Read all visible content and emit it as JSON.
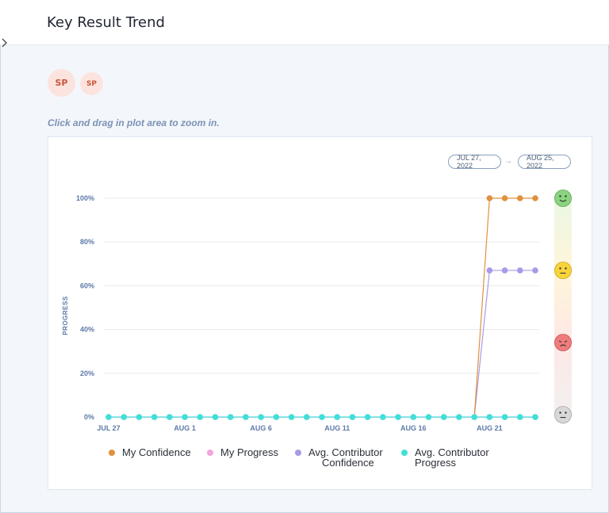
{
  "header": {
    "title": "Key Result Trend"
  },
  "avatars": [
    {
      "initials": "SP"
    },
    {
      "initials": "SP"
    }
  ],
  "hint": "Click and drag in plot area to zoom in.",
  "date_range": {
    "start": "JUL 27, 2022",
    "arrow": "→",
    "end": "AUG 25, 2022"
  },
  "colors": {
    "my_confidence": "#e0913f",
    "my_progress": "#f4a3dd",
    "avg_contributor_confidence": "#a79be8",
    "avg_contributor_progress": "#3fe0d9"
  },
  "chart_data": {
    "type": "line",
    "ylabel": "PROGRESS",
    "ylim": [
      0,
      100
    ],
    "y_ticks": [
      "0%",
      "20%",
      "40%",
      "60%",
      "80%",
      "100%"
    ],
    "x_tick_labels": [
      "JUL 27",
      "AUG 1",
      "AUG 6",
      "AUG 11",
      "AUG 16",
      "AUG 21"
    ],
    "x_tick_days": [
      27,
      32,
      37,
      42,
      47,
      52
    ],
    "x_days": [
      27,
      28,
      29,
      30,
      31,
      32,
      33,
      34,
      35,
      36,
      37,
      38,
      39,
      40,
      41,
      42,
      43,
      44,
      45,
      46,
      47,
      48,
      49,
      50,
      51,
      52,
      53,
      54,
      55
    ],
    "grid": true,
    "legend_position": "bottom",
    "series": [
      {
        "name": "My Confidence",
        "color_key": "my_confidence",
        "values": [
          null,
          null,
          null,
          null,
          null,
          null,
          null,
          null,
          null,
          null,
          null,
          null,
          null,
          null,
          null,
          null,
          null,
          null,
          null,
          null,
          null,
          null,
          null,
          null,
          0,
          100,
          100,
          100,
          100
        ]
      },
      {
        "name": "My Progress",
        "color_key": "my_progress",
        "values": [
          0,
          0,
          0,
          0,
          0,
          0,
          0,
          0,
          0,
          0,
          0,
          0,
          0,
          0,
          0,
          0,
          0,
          0,
          0,
          0,
          0,
          0,
          0,
          0,
          0,
          0,
          0,
          0,
          0
        ]
      },
      {
        "name": "Avg. Contributor Confidence",
        "color_key": "avg_contributor_confidence",
        "values": [
          null,
          null,
          null,
          null,
          null,
          null,
          null,
          null,
          null,
          null,
          null,
          null,
          null,
          null,
          null,
          null,
          null,
          null,
          null,
          null,
          null,
          null,
          null,
          null,
          0,
          67,
          67,
          67,
          67
        ]
      },
      {
        "name": "Avg. Contributor Progress",
        "color_key": "avg_contributor_progress",
        "values": [
          0,
          0,
          0,
          0,
          0,
          0,
          0,
          0,
          0,
          0,
          0,
          0,
          0,
          0,
          0,
          0,
          0,
          0,
          0,
          0,
          0,
          0,
          0,
          0,
          0,
          0,
          0,
          0,
          0
        ]
      }
    ],
    "confidence_scale": [
      "happy-face-icon",
      "neutral-face-icon",
      "sad-face-icon",
      "no-status-face-icon"
    ]
  },
  "legend": {
    "my_confidence": "My Confidence",
    "my_progress": "My Progress",
    "avg_conf_line1": "Avg. Contributor",
    "avg_conf_line2": "Confidence",
    "avg_prog_line1": "Avg. Contributor",
    "avg_prog_line2": "Progress"
  }
}
